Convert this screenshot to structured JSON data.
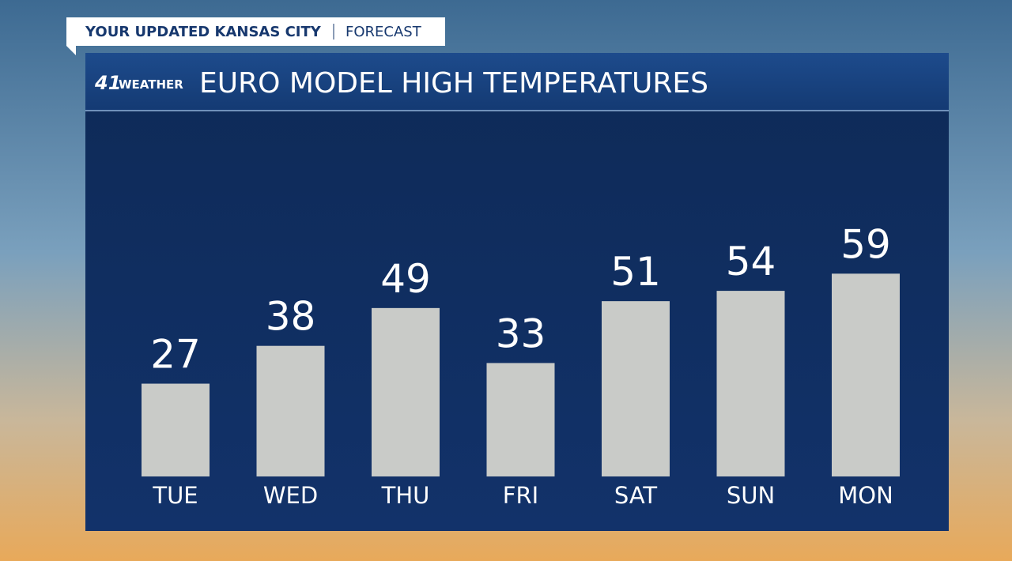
{
  "banner": {
    "title": "YOUR UPDATED KANSAS CITY",
    "subtitle": "FORECAST"
  },
  "logo": {
    "number": "41",
    "text": "WEATHER"
  },
  "chart_data": {
    "type": "bar",
    "title": "EURO MODEL HIGH TEMPERATURES",
    "categories": [
      "TUE",
      "WED",
      "THU",
      "FRI",
      "SAT",
      "SUN",
      "MON"
    ],
    "values": [
      27,
      38,
      49,
      33,
      51,
      54,
      59
    ],
    "color": "#c9cbc8",
    "ylim": [
      0,
      100
    ]
  }
}
